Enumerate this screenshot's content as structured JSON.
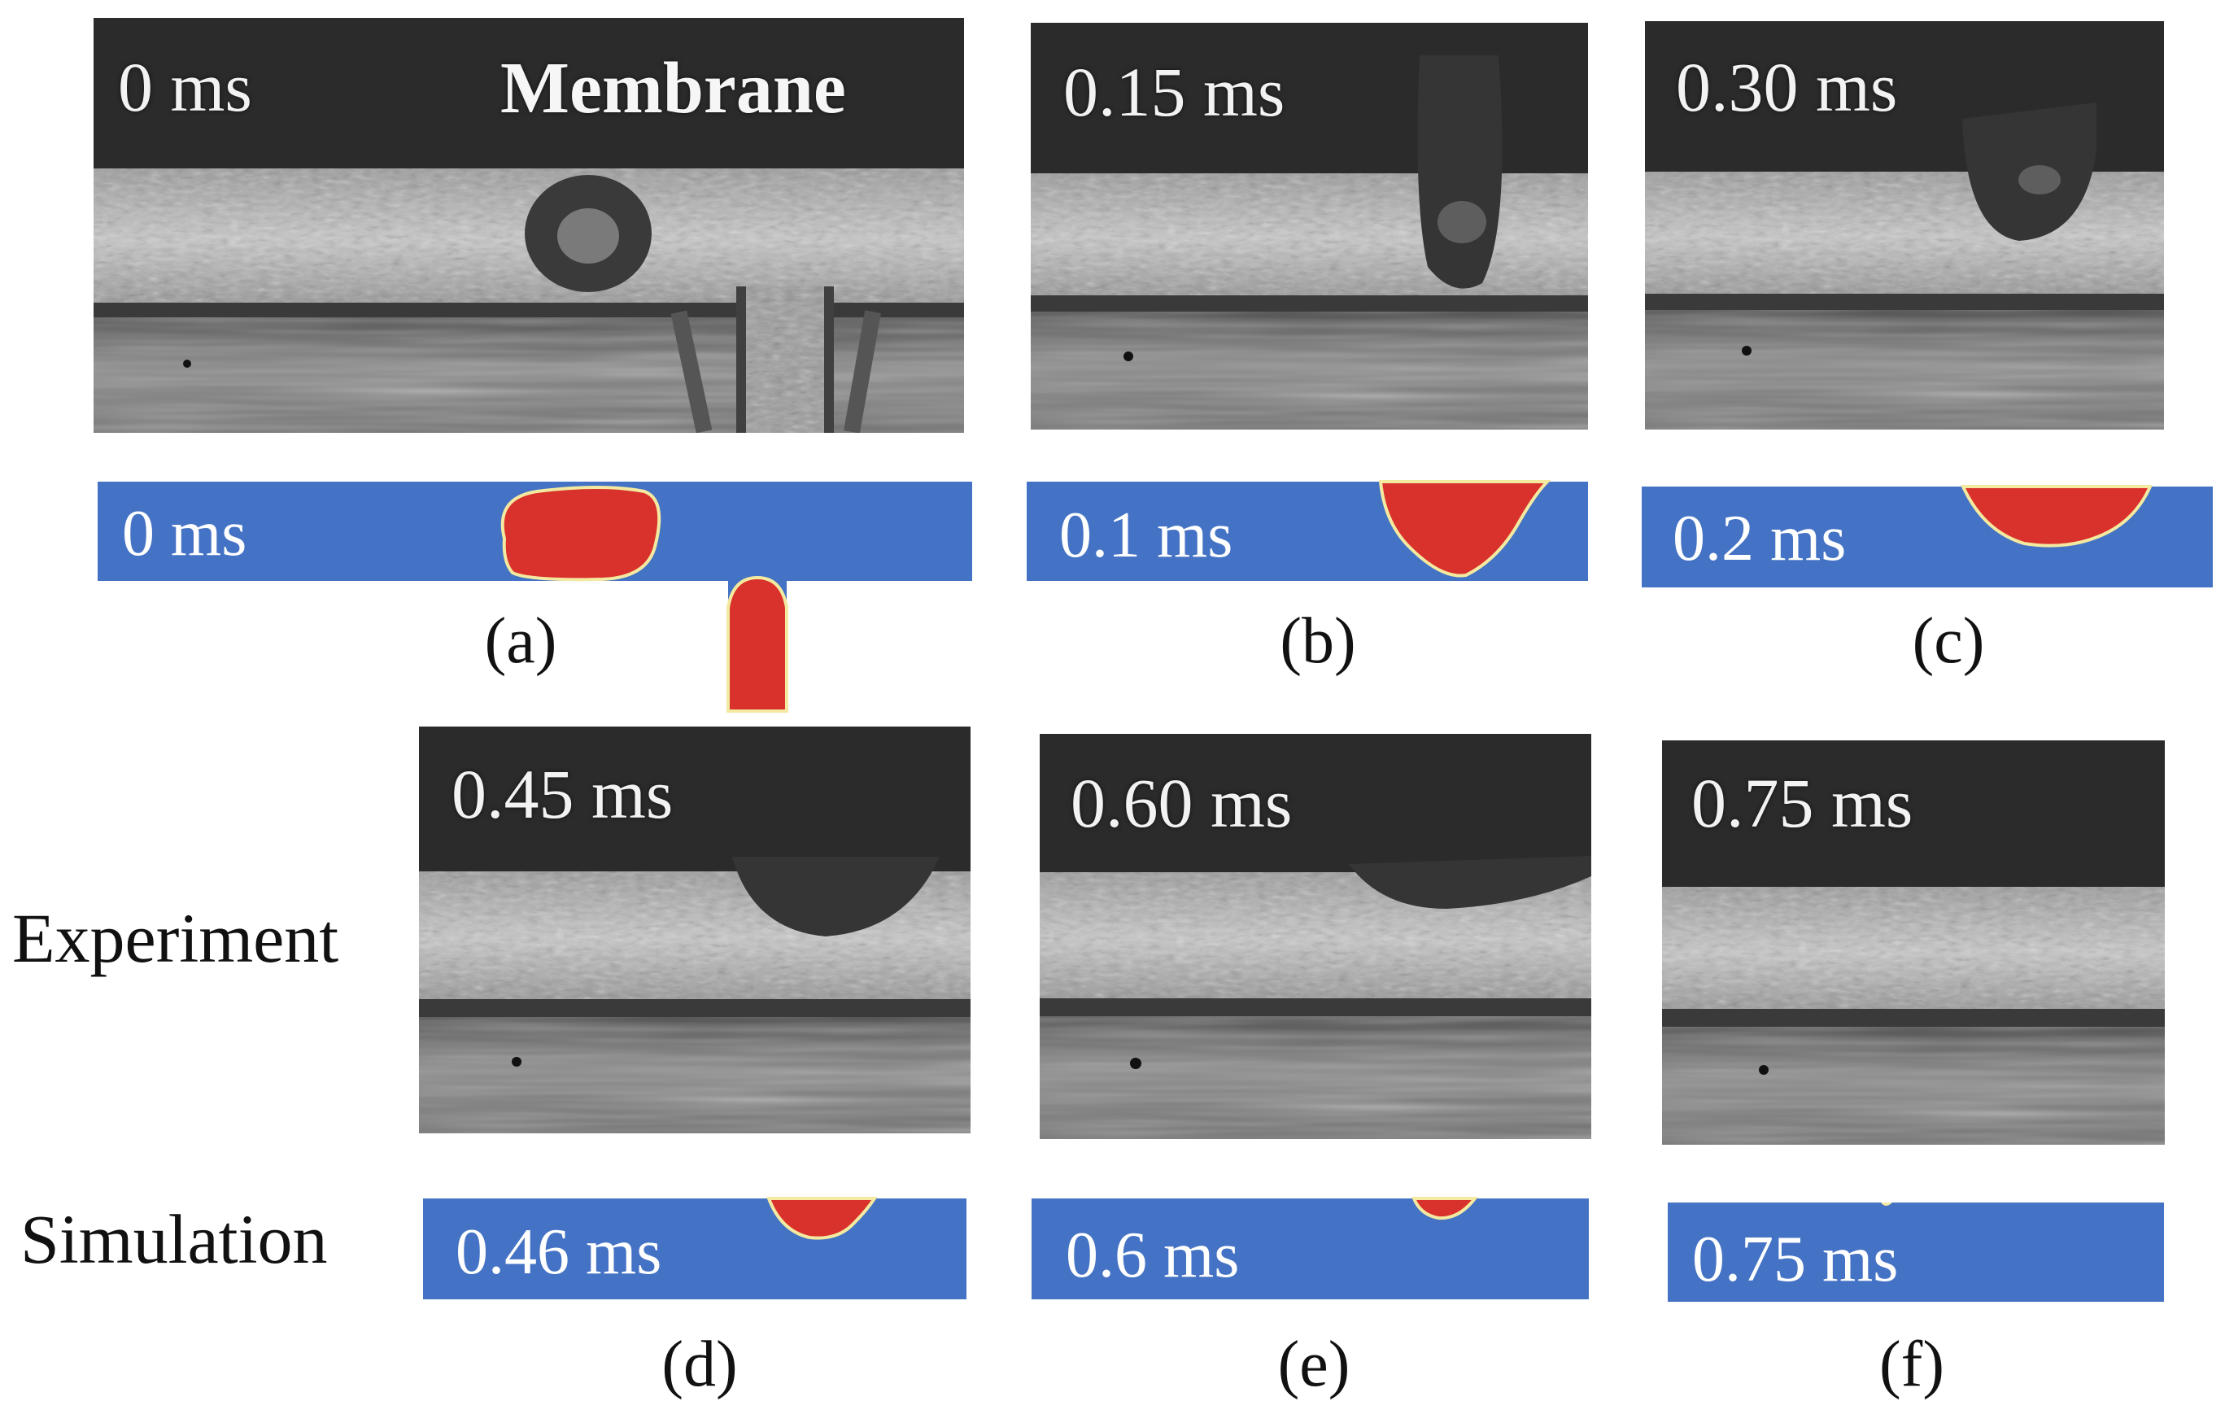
{
  "experiment_panels": [
    {
      "time": "0 ms",
      "label": "Membrane"
    },
    {
      "time": "0.15 ms"
    },
    {
      "time": "0.30 ms"
    },
    {
      "time": "0.45 ms"
    },
    {
      "time": "0.60 ms"
    },
    {
      "time": "0.75 ms"
    }
  ],
  "simulation_panels": [
    {
      "time": "0 ms"
    },
    {
      "time": "0.1 ms"
    },
    {
      "time": "0.2 ms"
    },
    {
      "time": "0.46 ms"
    },
    {
      "time": "0.6 ms"
    },
    {
      "time": "0.75 ms"
    }
  ],
  "panel_letters": [
    "(a)",
    "(b)",
    "(c)",
    "(d)",
    "(e)",
    "(f)"
  ],
  "row_labels": {
    "experiment": "Experiment",
    "simulation": "Simulation"
  },
  "colors": {
    "simulation_gas": "#4472c4",
    "simulation_liquid": "#d9312b",
    "interface": "#f3e9a0",
    "photo_dark": "#2a2a2a",
    "photo_light": "#bdbdbd"
  }
}
